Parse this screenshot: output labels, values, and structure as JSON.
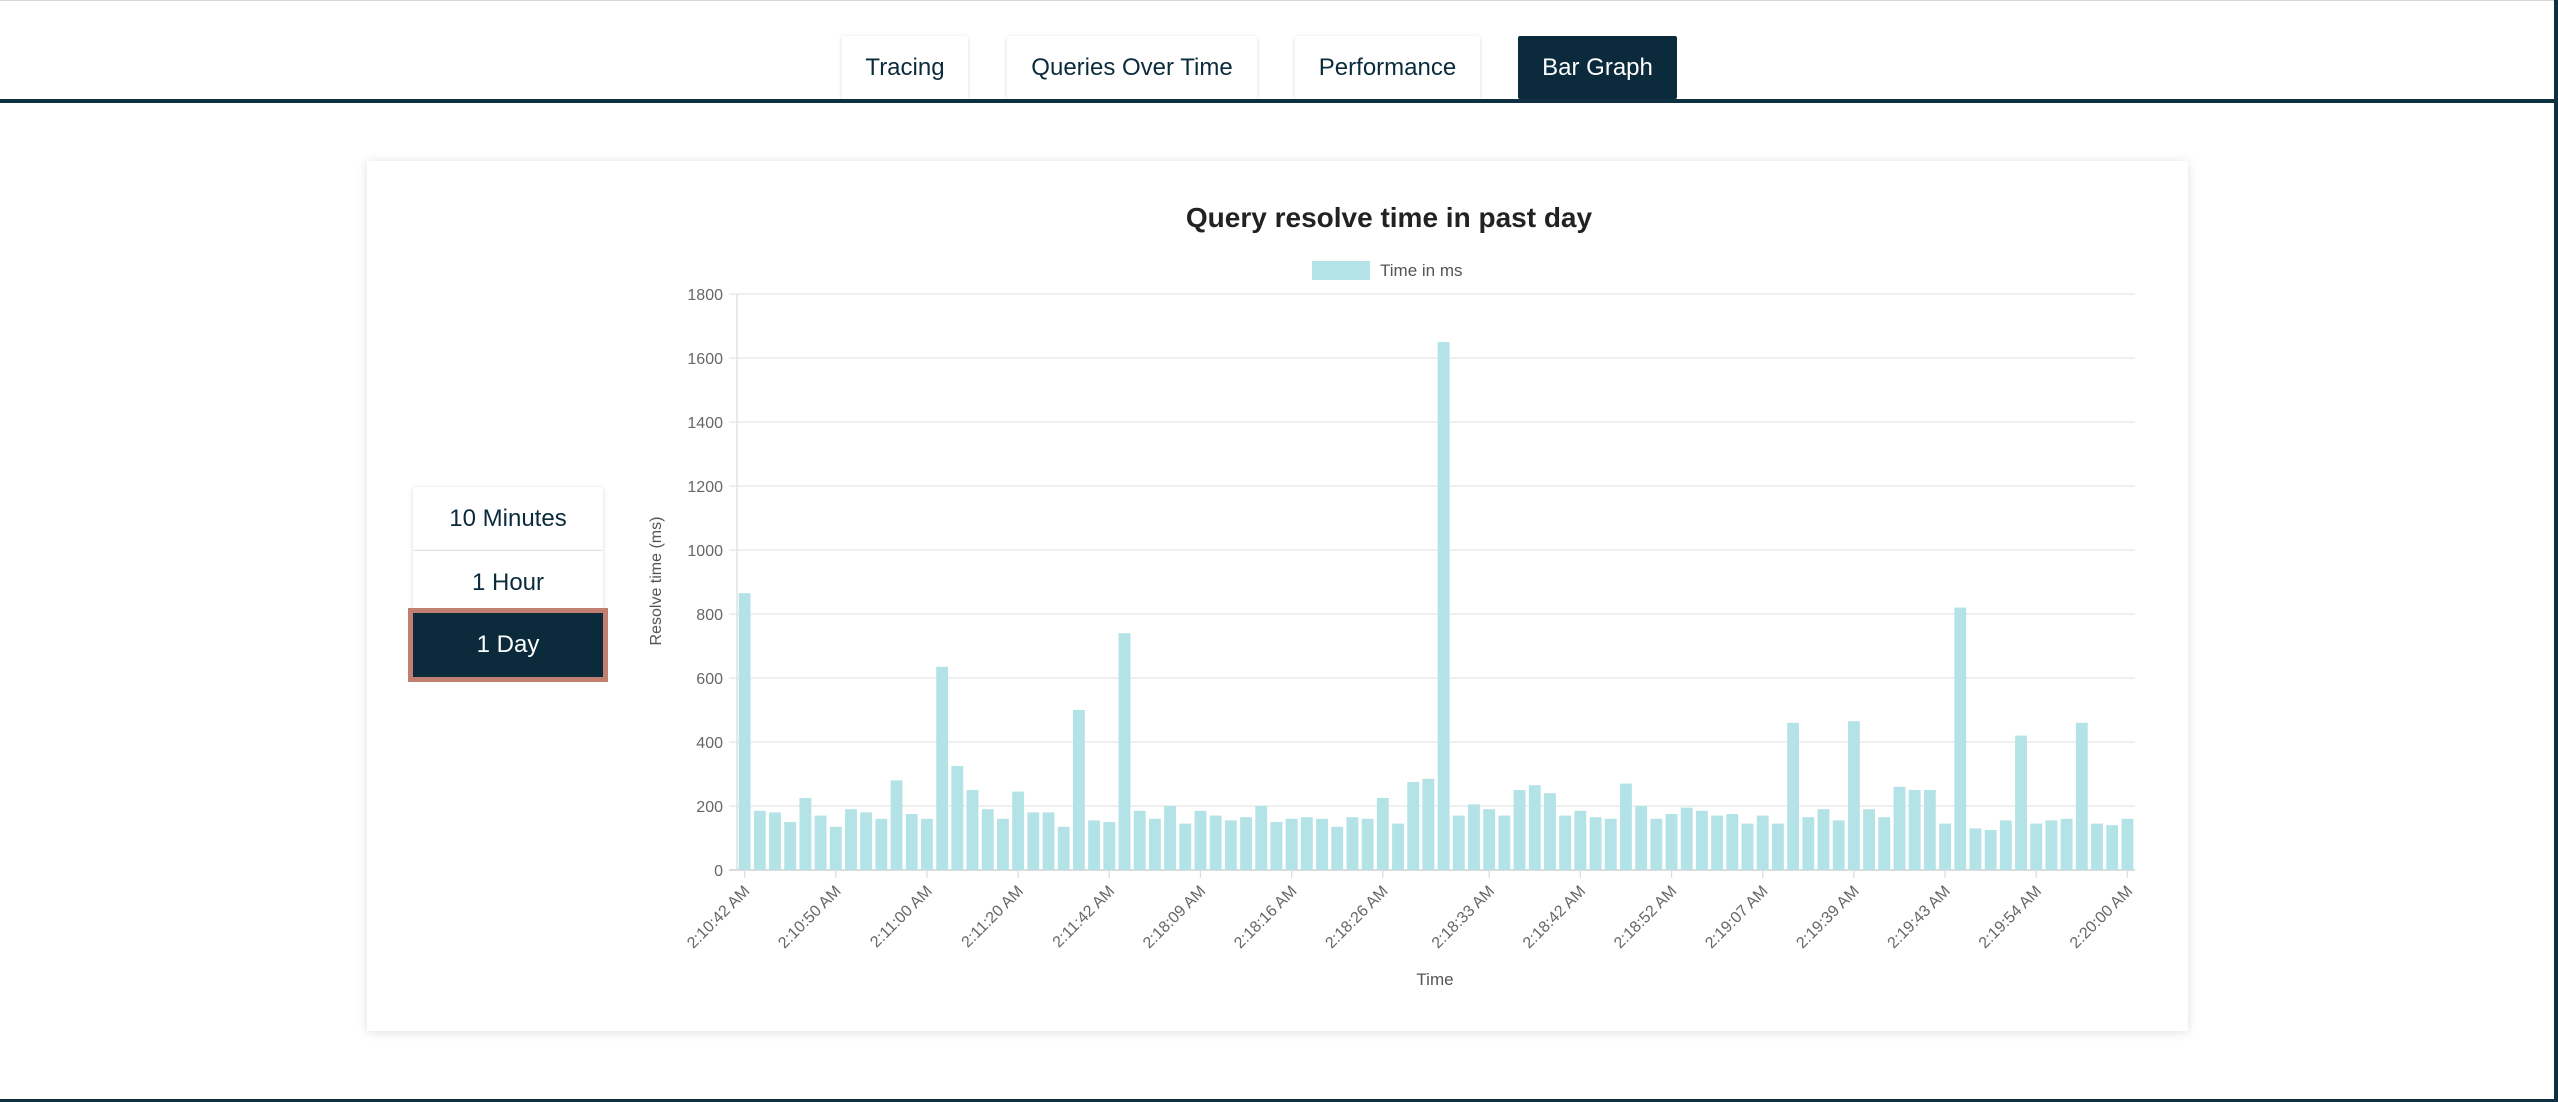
{
  "nav": {
    "tabs": [
      {
        "label": "Tracing"
      },
      {
        "label": "Queries Over Time"
      },
      {
        "label": "Performance"
      },
      {
        "label": "Bar Graph"
      }
    ],
    "active_tab": "Bar Graph"
  },
  "range": {
    "buttons": [
      {
        "label": "10 Minutes"
      },
      {
        "label": "1 Hour"
      },
      {
        "label": "1 Day"
      }
    ],
    "selected": "1 Day"
  },
  "colors": {
    "brand_dark": "#0b2b3c",
    "selected_border": "#c17f72",
    "bar_fill": "#b3e3e6"
  },
  "chart_data": {
    "type": "bar",
    "title": "Query resolve time in past day",
    "legend": "Time in ms",
    "legend_position": "top-center",
    "xlabel": "Time",
    "ylabel": "Resolve time (ms)",
    "ylim": [
      0,
      1800
    ],
    "y_ticks": [
      0,
      200,
      400,
      600,
      800,
      1000,
      1200,
      1400,
      1600,
      1800
    ],
    "grid": true,
    "x_tick_labels": [
      "2:10:42 AM",
      "2:10:50 AM",
      "2:11:00 AM",
      "2:11:20 AM",
      "2:11:42 AM",
      "2:18:09 AM",
      "2:18:16 AM",
      "2:18:26 AM",
      "2:18:33 AM",
      "2:18:42 AM",
      "2:18:52 AM",
      "2:19:07 AM",
      "2:19:39 AM",
      "2:19:43 AM",
      "2:19:54 AM",
      "2:20:00 AM"
    ],
    "values": [
      865,
      185,
      180,
      150,
      225,
      170,
      135,
      190,
      180,
      160,
      280,
      175,
      160,
      635,
      325,
      250,
      190,
      160,
      245,
      180,
      180,
      135,
      500,
      155,
      150,
      740,
      185,
      160,
      200,
      145,
      185,
      170,
      155,
      165,
      200,
      150,
      160,
      165,
      160,
      135,
      165,
      160,
      225,
      145,
      275,
      285,
      1650,
      170,
      205,
      190,
      170,
      250,
      265,
      240,
      170,
      185,
      165,
      160,
      270,
      200,
      160,
      175,
      195,
      185,
      170,
      175,
      145,
      170,
      145,
      460,
      165,
      190,
      155,
      465,
      190,
      165,
      260,
      250,
      250,
      145,
      820,
      130,
      125,
      155,
      420,
      145,
      155,
      160,
      460,
      145,
      140,
      160
    ]
  }
}
